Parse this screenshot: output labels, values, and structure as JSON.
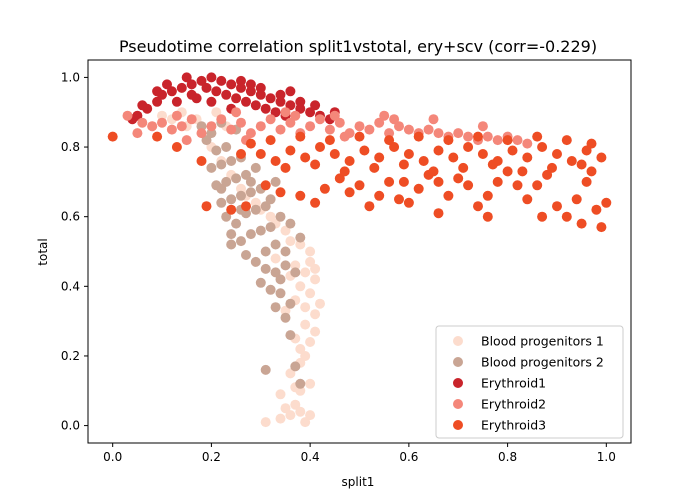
{
  "chart_data": {
    "type": "scatter",
    "title": "Pseudotime correlation split1vstotal, ery+scv (corr=-0.229)",
    "xlabel": "split1",
    "ylabel": "total",
    "xlim": [
      -0.05,
      1.05
    ],
    "ylim": [
      -0.05,
      1.05
    ],
    "xticks": [
      "0.0",
      "0.2",
      "0.4",
      "0.6",
      "0.8",
      "1.0"
    ],
    "yticks": [
      "0.0",
      "0.2",
      "0.4",
      "0.6",
      "0.8",
      "1.0"
    ],
    "grid": false,
    "legend_position": "bottom-right",
    "series": [
      {
        "name": "Blood progenitors 1",
        "color": "#fcdccd",
        "points": [
          [
            0.31,
            0.01
          ],
          [
            0.34,
            0.02
          ],
          [
            0.36,
            0.03
          ],
          [
            0.38,
            0.04
          ],
          [
            0.4,
            0.03
          ],
          [
            0.37,
            0.06
          ],
          [
            0.35,
            0.05
          ],
          [
            0.39,
            0.01
          ],
          [
            0.38,
            0.1
          ],
          [
            0.4,
            0.12
          ],
          [
            0.36,
            0.15
          ],
          [
            0.38,
            0.18
          ],
          [
            0.39,
            0.2
          ],
          [
            0.4,
            0.24
          ],
          [
            0.41,
            0.27
          ],
          [
            0.39,
            0.29
          ],
          [
            0.41,
            0.32
          ],
          [
            0.42,
            0.35
          ],
          [
            0.4,
            0.38
          ],
          [
            0.38,
            0.4
          ],
          [
            0.41,
            0.42
          ],
          [
            0.39,
            0.44
          ],
          [
            0.37,
            0.46
          ],
          [
            0.4,
            0.47
          ],
          [
            0.41,
            0.45
          ],
          [
            0.4,
            0.5
          ],
          [
            0.38,
            0.52
          ],
          [
            0.36,
            0.53
          ],
          [
            0.35,
            0.56
          ],
          [
            0.33,
            0.58
          ],
          [
            0.32,
            0.6
          ],
          [
            0.3,
            0.62
          ],
          [
            0.29,
            0.64
          ],
          [
            0.27,
            0.66
          ],
          [
            0.26,
            0.68
          ],
          [
            0.24,
            0.72
          ],
          [
            0.22,
            0.76
          ],
          [
            0.2,
            0.8
          ],
          [
            0.18,
            0.84
          ],
          [
            0.15,
            0.86
          ],
          [
            0.12,
            0.88
          ],
          [
            0.1,
            0.89
          ],
          [
            0.08,
            0.86
          ],
          [
            0.17,
            0.88
          ],
          [
            0.23,
            0.86
          ],
          [
            0.21,
            0.9
          ],
          [
            0.14,
            0.9
          ],
          [
            0.37,
            0.36
          ],
          [
            0.35,
            0.33
          ],
          [
            0.33,
            0.48
          ],
          [
            0.36,
            0.43
          ],
          [
            0.39,
            0.34
          ],
          [
            0.37,
            0.25
          ],
          [
            0.38,
            0.22
          ],
          [
            0.34,
            0.09
          ],
          [
            0.37,
            0.11
          ]
        ]
      },
      {
        "name": "Blood progenitors 2",
        "color": "#c9a594",
        "points": [
          [
            0.31,
            0.16
          ],
          [
            0.37,
            0.17
          ],
          [
            0.38,
            0.12
          ],
          [
            0.36,
            0.26
          ],
          [
            0.35,
            0.31
          ],
          [
            0.33,
            0.34
          ],
          [
            0.36,
            0.35
          ],
          [
            0.34,
            0.38
          ],
          [
            0.32,
            0.39
          ],
          [
            0.3,
            0.41
          ],
          [
            0.34,
            0.42
          ],
          [
            0.37,
            0.44
          ],
          [
            0.33,
            0.44
          ],
          [
            0.31,
            0.45
          ],
          [
            0.35,
            0.46
          ],
          [
            0.29,
            0.47
          ],
          [
            0.27,
            0.49
          ],
          [
            0.31,
            0.5
          ],
          [
            0.33,
            0.52
          ],
          [
            0.26,
            0.53
          ],
          [
            0.24,
            0.55
          ],
          [
            0.28,
            0.55
          ],
          [
            0.3,
            0.56
          ],
          [
            0.32,
            0.57
          ],
          [
            0.25,
            0.58
          ],
          [
            0.23,
            0.6
          ],
          [
            0.27,
            0.61
          ],
          [
            0.29,
            0.62
          ],
          [
            0.31,
            0.63
          ],
          [
            0.22,
            0.64
          ],
          [
            0.24,
            0.65
          ],
          [
            0.26,
            0.66
          ],
          [
            0.28,
            0.67
          ],
          [
            0.3,
            0.68
          ],
          [
            0.21,
            0.69
          ],
          [
            0.23,
            0.7
          ],
          [
            0.25,
            0.71
          ],
          [
            0.27,
            0.72
          ],
          [
            0.2,
            0.74
          ],
          [
            0.22,
            0.75
          ],
          [
            0.24,
            0.76
          ],
          [
            0.26,
            0.77
          ],
          [
            0.21,
            0.79
          ],
          [
            0.23,
            0.8
          ],
          [
            0.19,
            0.82
          ],
          [
            0.2,
            0.84
          ],
          [
            0.18,
            0.86
          ],
          [
            0.22,
            0.87
          ],
          [
            0.25,
            0.85
          ],
          [
            0.28,
            0.7
          ],
          [
            0.32,
            0.65
          ],
          [
            0.34,
            0.6
          ],
          [
            0.36,
            0.58
          ],
          [
            0.38,
            0.54
          ],
          [
            0.35,
            0.5
          ],
          [
            0.22,
            0.68
          ],
          [
            0.29,
            0.74
          ],
          [
            0.33,
            0.7
          ],
          [
            0.26,
            0.62
          ],
          [
            0.24,
            0.52
          ]
        ]
      },
      {
        "name": "Erythroid1",
        "color": "#c9242b",
        "points": [
          [
            0.04,
            0.88
          ],
          [
            0.05,
            0.89
          ],
          [
            0.07,
            0.91
          ],
          [
            0.09,
            0.93
          ],
          [
            0.1,
            0.95
          ],
          [
            0.12,
            0.96
          ],
          [
            0.14,
            0.97
          ],
          [
            0.16,
            0.98
          ],
          [
            0.18,
            0.99
          ],
          [
            0.2,
            1.0
          ],
          [
            0.22,
            0.99
          ],
          [
            0.24,
            0.98
          ],
          [
            0.26,
            0.97
          ],
          [
            0.28,
            0.96
          ],
          [
            0.3,
            0.95
          ],
          [
            0.32,
            0.94
          ],
          [
            0.34,
            0.93
          ],
          [
            0.36,
            0.92
          ],
          [
            0.38,
            0.91
          ],
          [
            0.4,
            0.9
          ],
          [
            0.42,
            0.89
          ],
          [
            0.44,
            0.88
          ],
          [
            0.11,
            0.98
          ],
          [
            0.15,
            1.0
          ],
          [
            0.19,
            0.97
          ],
          [
            0.21,
            0.96
          ],
          [
            0.23,
            0.95
          ],
          [
            0.25,
            0.94
          ],
          [
            0.27,
            0.93
          ],
          [
            0.29,
            0.92
          ],
          [
            0.31,
            0.91
          ],
          [
            0.33,
            0.9
          ],
          [
            0.35,
            0.89
          ],
          [
            0.13,
            0.93
          ],
          [
            0.17,
            0.94
          ],
          [
            0.26,
            0.99
          ],
          [
            0.3,
            0.97
          ],
          [
            0.34,
            0.95
          ],
          [
            0.38,
            0.93
          ],
          [
            0.41,
            0.92
          ],
          [
            0.45,
            0.9
          ],
          [
            0.09,
            0.96
          ],
          [
            0.2,
            0.93
          ],
          [
            0.24,
            0.91
          ],
          [
            0.16,
            0.95
          ],
          [
            0.06,
            0.92
          ],
          [
            0.28,
            0.98
          ],
          [
            0.36,
            0.96
          ]
        ]
      },
      {
        "name": "Erythroid2",
        "color": "#f4877a",
        "points": [
          [
            0.03,
            0.89
          ],
          [
            0.06,
            0.87
          ],
          [
            0.08,
            0.86
          ],
          [
            0.1,
            0.87
          ],
          [
            0.12,
            0.85
          ],
          [
            0.14,
            0.86
          ],
          [
            0.16,
            0.88
          ],
          [
            0.18,
            0.84
          ],
          [
            0.2,
            0.86
          ],
          [
            0.22,
            0.88
          ],
          [
            0.24,
            0.85
          ],
          [
            0.26,
            0.87
          ],
          [
            0.28,
            0.84
          ],
          [
            0.3,
            0.86
          ],
          [
            0.32,
            0.88
          ],
          [
            0.34,
            0.85
          ],
          [
            0.36,
            0.87
          ],
          [
            0.38,
            0.84
          ],
          [
            0.4,
            0.86
          ],
          [
            0.42,
            0.88
          ],
          [
            0.44,
            0.85
          ],
          [
            0.46,
            0.87
          ],
          [
            0.48,
            0.84
          ],
          [
            0.5,
            0.86
          ],
          [
            0.52,
            0.85
          ],
          [
            0.54,
            0.87
          ],
          [
            0.56,
            0.84
          ],
          [
            0.58,
            0.86
          ],
          [
            0.6,
            0.85
          ],
          [
            0.62,
            0.84
          ],
          [
            0.64,
            0.85
          ],
          [
            0.66,
            0.84
          ],
          [
            0.68,
            0.83
          ],
          [
            0.7,
            0.84
          ],
          [
            0.72,
            0.83
          ],
          [
            0.74,
            0.82
          ],
          [
            0.76,
            0.83
          ],
          [
            0.78,
            0.82
          ],
          [
            0.8,
            0.83
          ],
          [
            0.82,
            0.82
          ],
          [
            0.84,
            0.81
          ],
          [
            0.13,
            0.89
          ],
          [
            0.25,
            0.9
          ],
          [
            0.35,
            0.9
          ],
          [
            0.45,
            0.89
          ],
          [
            0.55,
            0.89
          ],
          [
            0.65,
            0.88
          ],
          [
            0.75,
            0.86
          ],
          [
            0.15,
            0.82
          ],
          [
            0.27,
            0.82
          ],
          [
            0.47,
            0.83
          ],
          [
            0.57,
            0.88
          ],
          [
            0.37,
            0.89
          ],
          [
            0.05,
            0.84
          ]
        ]
      },
      {
        "name": "Erythroid3",
        "color": "#ee4d24",
        "points": [
          [
            0.0,
            0.83
          ],
          [
            0.09,
            0.83
          ],
          [
            0.13,
            0.8
          ],
          [
            0.18,
            0.76
          ],
          [
            0.19,
            0.63
          ],
          [
            0.24,
            0.62
          ],
          [
            0.27,
            0.63
          ],
          [
            0.31,
            0.69
          ],
          [
            0.34,
            0.67
          ],
          [
            0.38,
            0.66
          ],
          [
            0.41,
            0.64
          ],
          [
            0.43,
            0.68
          ],
          [
            0.46,
            0.71
          ],
          [
            0.48,
            0.67
          ],
          [
            0.5,
            0.69
          ],
          [
            0.52,
            0.63
          ],
          [
            0.54,
            0.66
          ],
          [
            0.56,
            0.7
          ],
          [
            0.58,
            0.65
          ],
          [
            0.6,
            0.64
          ],
          [
            0.62,
            0.68
          ],
          [
            0.64,
            0.72
          ],
          [
            0.66,
            0.7
          ],
          [
            0.68,
            0.66
          ],
          [
            0.7,
            0.71
          ],
          [
            0.72,
            0.69
          ],
          [
            0.74,
            0.63
          ],
          [
            0.76,
            0.66
          ],
          [
            0.78,
            0.7
          ],
          [
            0.8,
            0.73
          ],
          [
            0.82,
            0.69
          ],
          [
            0.84,
            0.65
          ],
          [
            0.86,
            0.69
          ],
          [
            0.88,
            0.72
          ],
          [
            0.9,
            0.63
          ],
          [
            0.92,
            0.6
          ],
          [
            0.94,
            0.65
          ],
          [
            0.96,
            0.7
          ],
          [
            0.98,
            0.62
          ],
          [
            1.0,
            0.64
          ],
          [
            0.99,
            0.57
          ],
          [
            0.95,
            0.58
          ],
          [
            0.87,
            0.6
          ],
          [
            0.76,
            0.6
          ],
          [
            0.66,
            0.61
          ],
          [
            0.3,
            0.78
          ],
          [
            0.33,
            0.76
          ],
          [
            0.36,
            0.79
          ],
          [
            0.39,
            0.77
          ],
          [
            0.42,
            0.8
          ],
          [
            0.45,
            0.78
          ],
          [
            0.48,
            0.76
          ],
          [
            0.51,
            0.79
          ],
          [
            0.54,
            0.77
          ],
          [
            0.57,
            0.8
          ],
          [
            0.6,
            0.78
          ],
          [
            0.63,
            0.76
          ],
          [
            0.66,
            0.79
          ],
          [
            0.69,
            0.77
          ],
          [
            0.72,
            0.8
          ],
          [
            0.75,
            0.78
          ],
          [
            0.78,
            0.76
          ],
          [
            0.81,
            0.79
          ],
          [
            0.84,
            0.77
          ],
          [
            0.87,
            0.8
          ],
          [
            0.9,
            0.78
          ],
          [
            0.93,
            0.76
          ],
          [
            0.96,
            0.79
          ],
          [
            0.99,
            0.77
          ],
          [
            0.32,
            0.82
          ],
          [
            0.38,
            0.83
          ],
          [
            0.44,
            0.82
          ],
          [
            0.5,
            0.83
          ],
          [
            0.56,
            0.82
          ],
          [
            0.62,
            0.83
          ],
          [
            0.68,
            0.82
          ],
          [
            0.74,
            0.83
          ],
          [
            0.8,
            0.82
          ],
          [
            0.86,
            0.83
          ],
          [
            0.92,
            0.82
          ],
          [
            0.97,
            0.81
          ],
          [
            0.35,
            0.74
          ],
          [
            0.41,
            0.75
          ],
          [
            0.47,
            0.73
          ],
          [
            0.53,
            0.74
          ],
          [
            0.59,
            0.75
          ],
          [
            0.65,
            0.73
          ],
          [
            0.71,
            0.74
          ],
          [
            0.77,
            0.75
          ],
          [
            0.83,
            0.73
          ],
          [
            0.89,
            0.74
          ],
          [
            0.95,
            0.75
          ],
          [
            0.28,
            0.81
          ],
          [
            0.26,
            0.78
          ],
          [
            0.59,
            0.7
          ],
          [
            0.97,
            0.73
          ]
        ]
      }
    ]
  }
}
